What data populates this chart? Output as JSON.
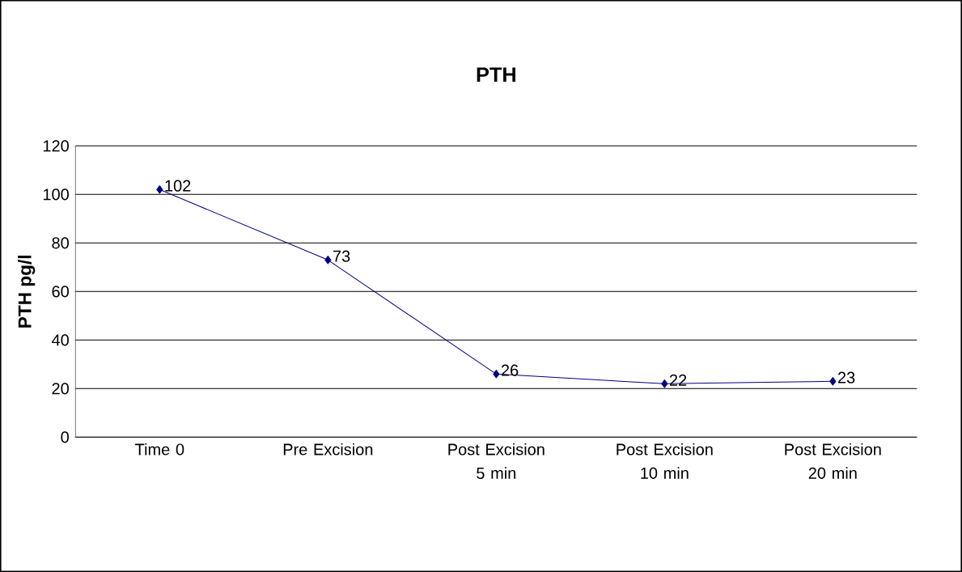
{
  "chart_data": {
    "type": "line",
    "title": "PTH",
    "ylabel": "PTH pg/l",
    "categories": [
      "Time 0",
      "Pre Excision",
      "Post Excision 5 min",
      "Post Excision 10 min",
      "Post Excision 20 min"
    ],
    "values": [
      102,
      73,
      26,
      22,
      23
    ],
    "color": "#000080",
    "ylim": [
      0,
      120
    ],
    "yticks": [
      0,
      20,
      40,
      60,
      80,
      100,
      120
    ],
    "grid": "y",
    "marker": "diamond",
    "line_style": "solid",
    "data_labels": true
  }
}
